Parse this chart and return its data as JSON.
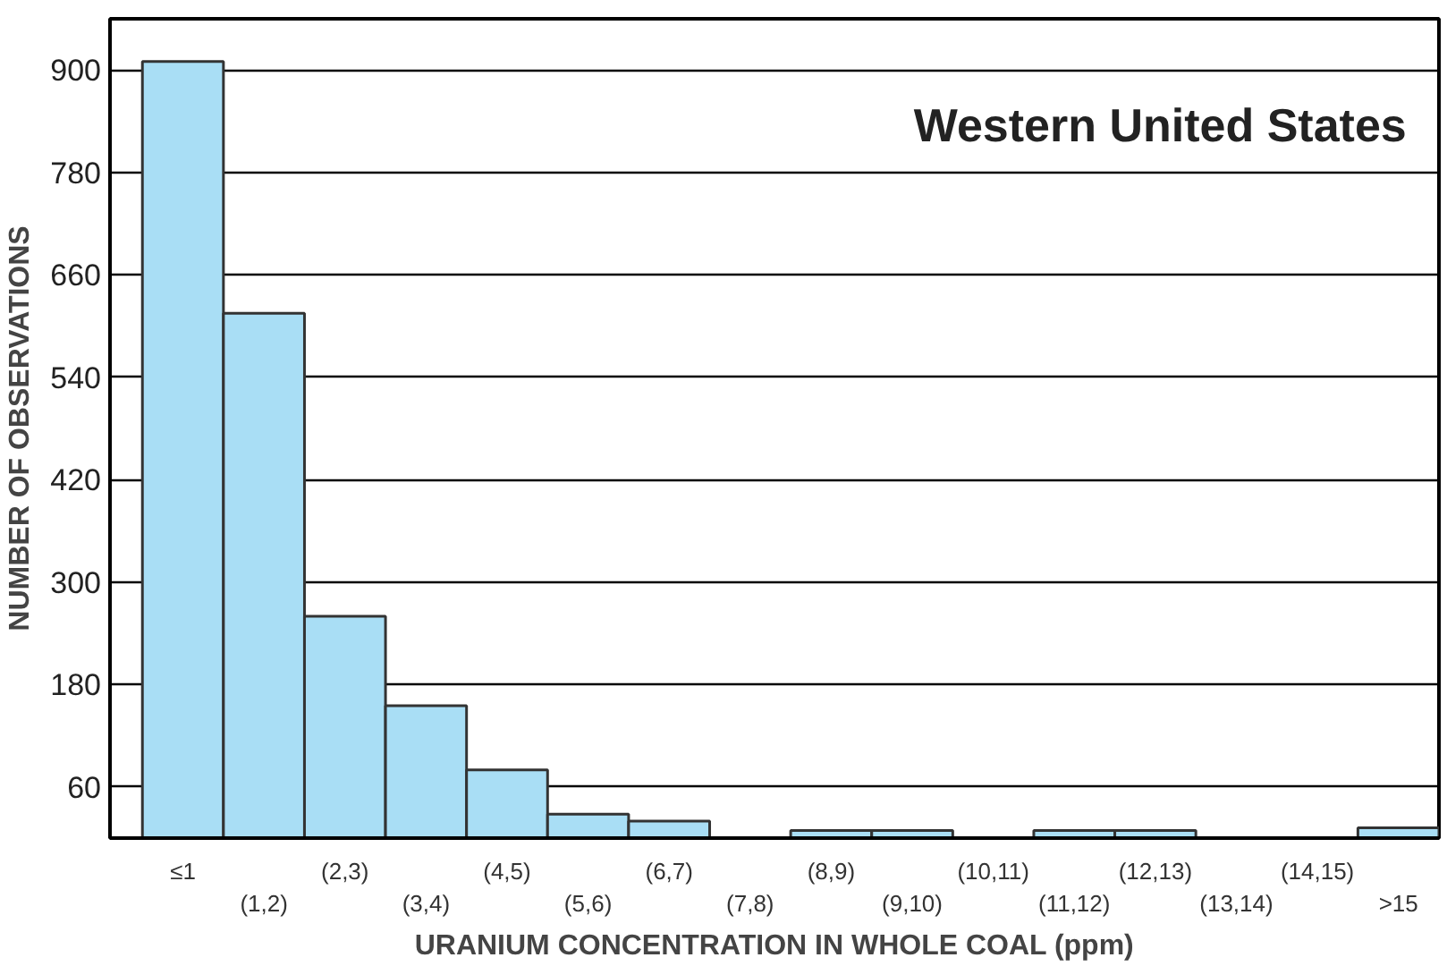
{
  "chart_data": {
    "type": "bar",
    "title": "Western United States",
    "xlabel": "URANIUM CONCENTRATION IN WHOLE COAL (ppm)",
    "ylabel": "NUMBER OF OBSERVATIONS",
    "categories": [
      "≤1",
      "(1,2)",
      "(2,3)",
      "(3,4)",
      "(4,5)",
      "(5,6)",
      "(6,7)",
      "(7,8)",
      "(8,9)",
      "(9,10)",
      "(10,11)",
      "(11,12)",
      "(12,13)",
      "(13,14)",
      "(14,15)",
      ">15"
    ],
    "values": [
      910,
      615,
      260,
      155,
      80,
      28,
      20,
      0,
      9,
      9,
      0,
      9,
      9,
      0,
      0,
      12
    ],
    "color": "#a9def5",
    "ylim": [
      0,
      960
    ],
    "yticks": [
      60,
      180,
      300,
      420,
      540,
      660,
      780,
      900
    ],
    "grid": "y"
  }
}
